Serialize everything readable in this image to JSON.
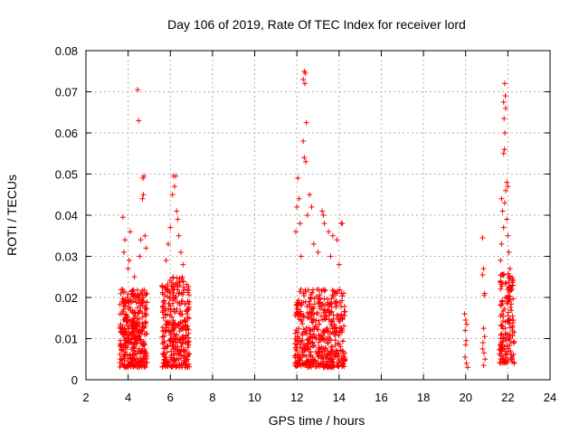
{
  "chart_data": {
    "type": "scatter",
    "title": "Day 106 of 2019, Rate Of TEC Index for receiver lord",
    "xlabel": "GPS time / hours",
    "ylabel": "ROTI / TECUs",
    "xlim": [
      2,
      24
    ],
    "ylim": [
      0,
      0.08
    ],
    "xticks": [
      "2",
      "4",
      "6",
      "8",
      "10",
      "12",
      "14",
      "16",
      "18",
      "20",
      "22",
      "24"
    ],
    "yticks": [
      "0",
      "0.01",
      "0.02",
      "0.03",
      "0.04",
      "0.05",
      "0.06",
      "0.07",
      "0.08"
    ],
    "grid": true,
    "marker": "+",
    "color": "#ff0000",
    "series": [
      {
        "name": "ROTI",
        "clusters": [
          {
            "x_range": [
              3.6,
              4.9
            ],
            "y_range": [
              0.003,
              0.022
            ],
            "count": 360
          },
          {
            "x_range": [
              5.6,
              6.9
            ],
            "y_range": [
              0.003,
              0.025
            ],
            "count": 330
          },
          {
            "x_range": [
              11.9,
              14.3
            ],
            "y_range": [
              0.003,
              0.022
            ],
            "count": 480
          },
          {
            "x_range": [
              21.6,
              22.3
            ],
            "y_range": [
              0.004,
              0.026
            ],
            "count": 160
          }
        ],
        "points": [
          [
            3.75,
            0.0395
          ],
          [
            3.85,
            0.034
          ],
          [
            3.8,
            0.031
          ],
          [
            4.05,
            0.029
          ],
          [
            4.0,
            0.027
          ],
          [
            4.1,
            0.036
          ],
          [
            4.3,
            0.025
          ],
          [
            4.45,
            0.0705
          ],
          [
            4.5,
            0.063
          ],
          [
            4.7,
            0.049
          ],
          [
            4.75,
            0.0495
          ],
          [
            4.72,
            0.045
          ],
          [
            4.68,
            0.044
          ],
          [
            4.8,
            0.035
          ],
          [
            4.6,
            0.034
          ],
          [
            4.85,
            0.032
          ],
          [
            4.55,
            0.03
          ],
          [
            6.15,
            0.0495
          ],
          [
            6.25,
            0.0495
          ],
          [
            6.2,
            0.047
          ],
          [
            6.1,
            0.045
          ],
          [
            6.3,
            0.041
          ],
          [
            6.35,
            0.039
          ],
          [
            6.0,
            0.037
          ],
          [
            6.4,
            0.035
          ],
          [
            5.9,
            0.033
          ],
          [
            6.5,
            0.031
          ],
          [
            5.8,
            0.029
          ],
          [
            6.6,
            0.028
          ],
          [
            12.05,
            0.049
          ],
          [
            12.1,
            0.044
          ],
          [
            12.0,
            0.042
          ],
          [
            12.15,
            0.038
          ],
          [
            11.95,
            0.036
          ],
          [
            12.35,
            0.075
          ],
          [
            12.4,
            0.0745
          ],
          [
            12.3,
            0.073
          ],
          [
            12.38,
            0.072
          ],
          [
            12.45,
            0.0625
          ],
          [
            12.3,
            0.058
          ],
          [
            12.35,
            0.054
          ],
          [
            12.42,
            0.053
          ],
          [
            12.6,
            0.045
          ],
          [
            12.7,
            0.042
          ],
          [
            12.5,
            0.04
          ],
          [
            13.2,
            0.041
          ],
          [
            13.25,
            0.04
          ],
          [
            13.3,
            0.038
          ],
          [
            13.5,
            0.036
          ],
          [
            13.7,
            0.035
          ],
          [
            14.1,
            0.038
          ],
          [
            14.15,
            0.038
          ],
          [
            13.9,
            0.034
          ],
          [
            12.8,
            0.033
          ],
          [
            13.0,
            0.031
          ],
          [
            13.6,
            0.03
          ],
          [
            14.0,
            0.028
          ],
          [
            12.2,
            0.03
          ],
          [
            19.95,
            0.016
          ],
          [
            20.0,
            0.0145
          ],
          [
            20.05,
            0.0135
          ],
          [
            19.98,
            0.012
          ],
          [
            20.02,
            0.0095
          ],
          [
            20.0,
            0.0085
          ],
          [
            19.97,
            0.0055
          ],
          [
            20.04,
            0.004
          ],
          [
            20.1,
            0.003
          ],
          [
            20.8,
            0.0345
          ],
          [
            20.85,
            0.027
          ],
          [
            20.8,
            0.0255
          ],
          [
            20.9,
            0.021
          ],
          [
            20.88,
            0.0205
          ],
          [
            20.85,
            0.0125
          ],
          [
            20.9,
            0.0105
          ],
          [
            20.82,
            0.009
          ],
          [
            20.8,
            0.0075
          ],
          [
            20.87,
            0.0065
          ],
          [
            20.92,
            0.005
          ],
          [
            20.85,
            0.0035
          ],
          [
            21.85,
            0.072
          ],
          [
            21.88,
            0.069
          ],
          [
            21.8,
            0.0675
          ],
          [
            21.9,
            0.066
          ],
          [
            21.82,
            0.0635
          ],
          [
            21.86,
            0.06
          ],
          [
            21.84,
            0.056
          ],
          [
            21.8,
            0.055
          ],
          [
            21.95,
            0.048
          ],
          [
            22.0,
            0.047
          ],
          [
            21.9,
            0.046
          ],
          [
            21.7,
            0.044
          ],
          [
            21.85,
            0.043
          ],
          [
            21.75,
            0.041
          ],
          [
            21.95,
            0.039
          ],
          [
            21.8,
            0.037
          ],
          [
            22.0,
            0.035
          ],
          [
            21.7,
            0.033
          ],
          [
            22.05,
            0.031
          ],
          [
            21.65,
            0.029
          ],
          [
            22.1,
            0.027
          ]
        ]
      }
    ]
  }
}
